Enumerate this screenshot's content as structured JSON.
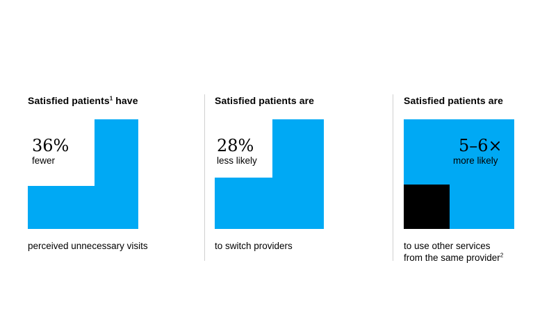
{
  "chart_data": [
    {
      "type": "other",
      "heading": "Satisfied patients",
      "heading_footnote": "1",
      "heading_suffix": " have",
      "value": "36%",
      "value_label": "fewer",
      "caption_lines": [
        "perceived unnecessary visits"
      ],
      "caption_footnote": "",
      "fraction": 0.36
    },
    {
      "type": "other",
      "heading": "Satisfied patients are",
      "heading_footnote": "",
      "heading_suffix": "",
      "value": "28%",
      "value_label": "less likely",
      "caption_lines": [
        "to switch providers"
      ],
      "caption_footnote": "",
      "fraction": 0.28
    },
    {
      "type": "other",
      "heading": "Satisfied patients are",
      "heading_footnote": "",
      "heading_suffix": "",
      "value": "5–6×",
      "value_label": "more likely",
      "caption_lines": [
        "to use other services",
        "from the same provider"
      ],
      "caption_footnote": "2",
      "multiplier": [
        5,
        6
      ]
    }
  ],
  "colors": {
    "accent": "#00a9f4",
    "inner_block": "#000000",
    "divider": "#d0d0d0",
    "text": "#000000"
  }
}
